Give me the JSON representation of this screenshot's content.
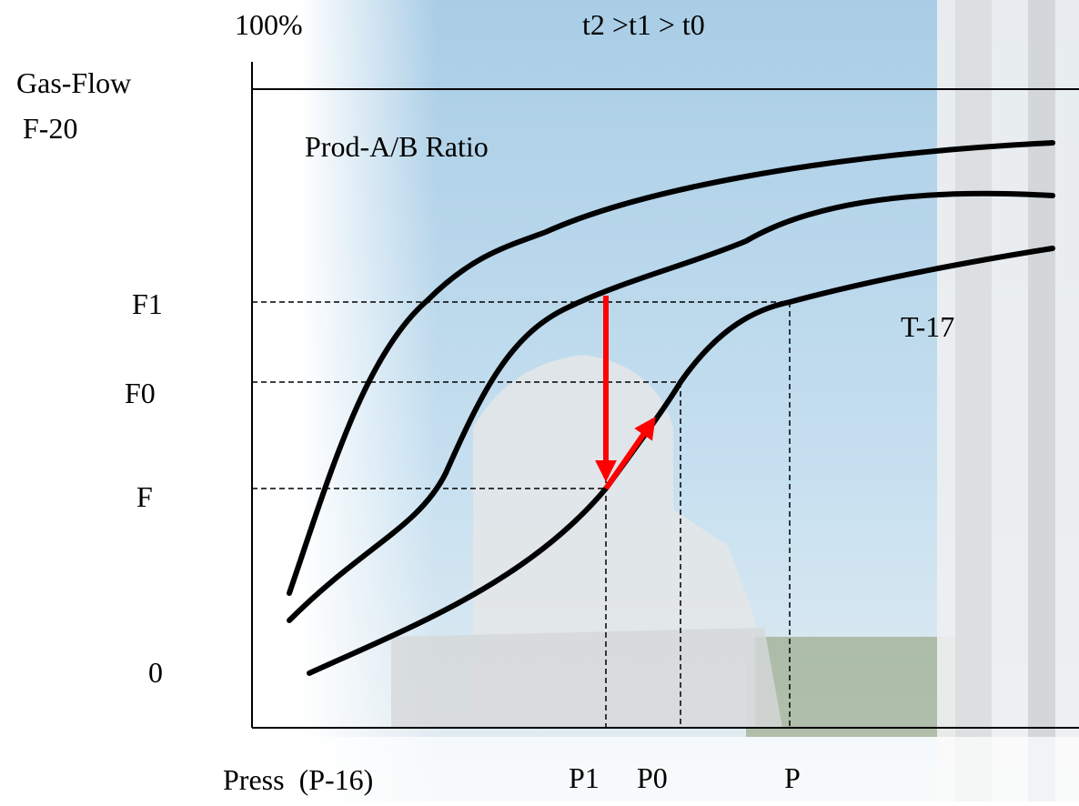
{
  "header": {
    "top_label": "100%",
    "condition": "t2 >t1 > t0"
  },
  "y_axis": {
    "title": "Gas-Flow",
    "subtitle": "F-20",
    "labels": [
      "F1",
      "F0",
      "F",
      "0"
    ]
  },
  "x_axis": {
    "title": "Press  (P-16)",
    "labels": [
      "P1",
      "P0",
      "P"
    ]
  },
  "annotations": {
    "curve_family": "Prod-A/B Ratio",
    "tag": "T-17"
  }
}
